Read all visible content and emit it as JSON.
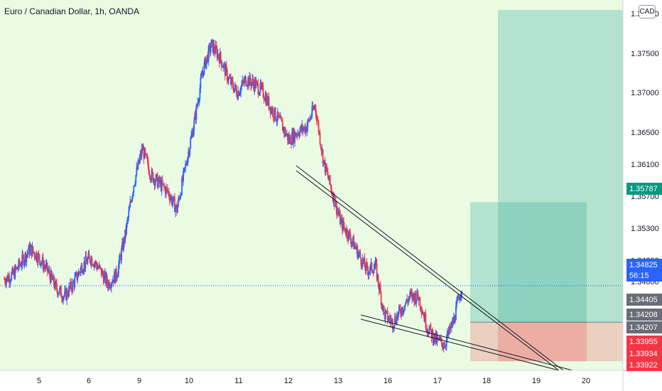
{
  "header": {
    "title": "Euro / Canadian Dollar, 1h, OANDA",
    "currency_badge": "CAD"
  },
  "colors": {
    "background": "#e9fbe2",
    "bull": "#2962ff",
    "bear": "#f23645",
    "profit_zone": "#26a69a",
    "loss_zone": "#f23645",
    "price_line": "#2962ff"
  },
  "chart_data": {
    "type": "candlestick",
    "title": "Euro / Canadian Dollar, 1h, OANDA",
    "x_tick_labels": [
      "5",
      "6",
      "9",
      "10",
      "11",
      "12",
      "13",
      "16",
      "17",
      "18",
      "19",
      "20"
    ],
    "y_tick_labels": [
      "1.37750",
      "1.37500",
      "1.37000",
      "1.36500",
      "1.36100",
      "1.35700",
      "1.35300",
      "1.34800",
      "1.34800"
    ],
    "ylim": [
      1.3385,
      1.38
    ],
    "last_price": {
      "value": "1.34825",
      "countdown": "56:15"
    },
    "price_tags": [
      {
        "label": "1.35787",
        "value": 1.35787,
        "color": "#089981"
      },
      {
        "label": "1.34405",
        "value": 1.34405,
        "color": "#6a6d78"
      },
      {
        "label": "1.34208",
        "value": 1.34208,
        "color": "#6a6d78"
      },
      {
        "label": "1.34207",
        "value": 1.34207,
        "color": "#6a6d78"
      },
      {
        "label": "1.33955",
        "value": 1.33955,
        "color": "#f23645"
      },
      {
        "label": "1.33934",
        "value": 1.33934,
        "color": "#f23645"
      },
      {
        "label": "1.33922",
        "value": 1.33922,
        "color": "#f23645"
      }
    ],
    "positions": [
      {
        "entry": 1.34405,
        "target": 1.35787,
        "stop": 1.33955
      },
      {
        "entry": 1.34405,
        "target": 1.38,
        "stop": 1.33955
      }
    ],
    "price_path": [
      1.349,
      1.3495,
      1.351,
      1.3525,
      1.3515,
      1.35,
      1.348,
      1.347,
      1.3485,
      1.3505,
      1.3515,
      1.3502,
      1.3485,
      1.3495,
      1.354,
      1.36,
      1.364,
      1.361,
      1.36,
      1.359,
      1.357,
      1.362,
      1.367,
      1.373,
      1.376,
      1.3745,
      1.372,
      1.3705,
      1.372,
      1.3715,
      1.3705,
      1.3685,
      1.367,
      1.365,
      1.366,
      1.3665,
      1.369,
      1.3625,
      1.359,
      1.3555,
      1.354,
      1.352,
      1.35,
      1.3505,
      1.345,
      1.344,
      1.3455,
      1.347,
      1.347,
      1.3435,
      1.342,
      1.3415,
      1.344,
      1.3482
    ]
  }
}
